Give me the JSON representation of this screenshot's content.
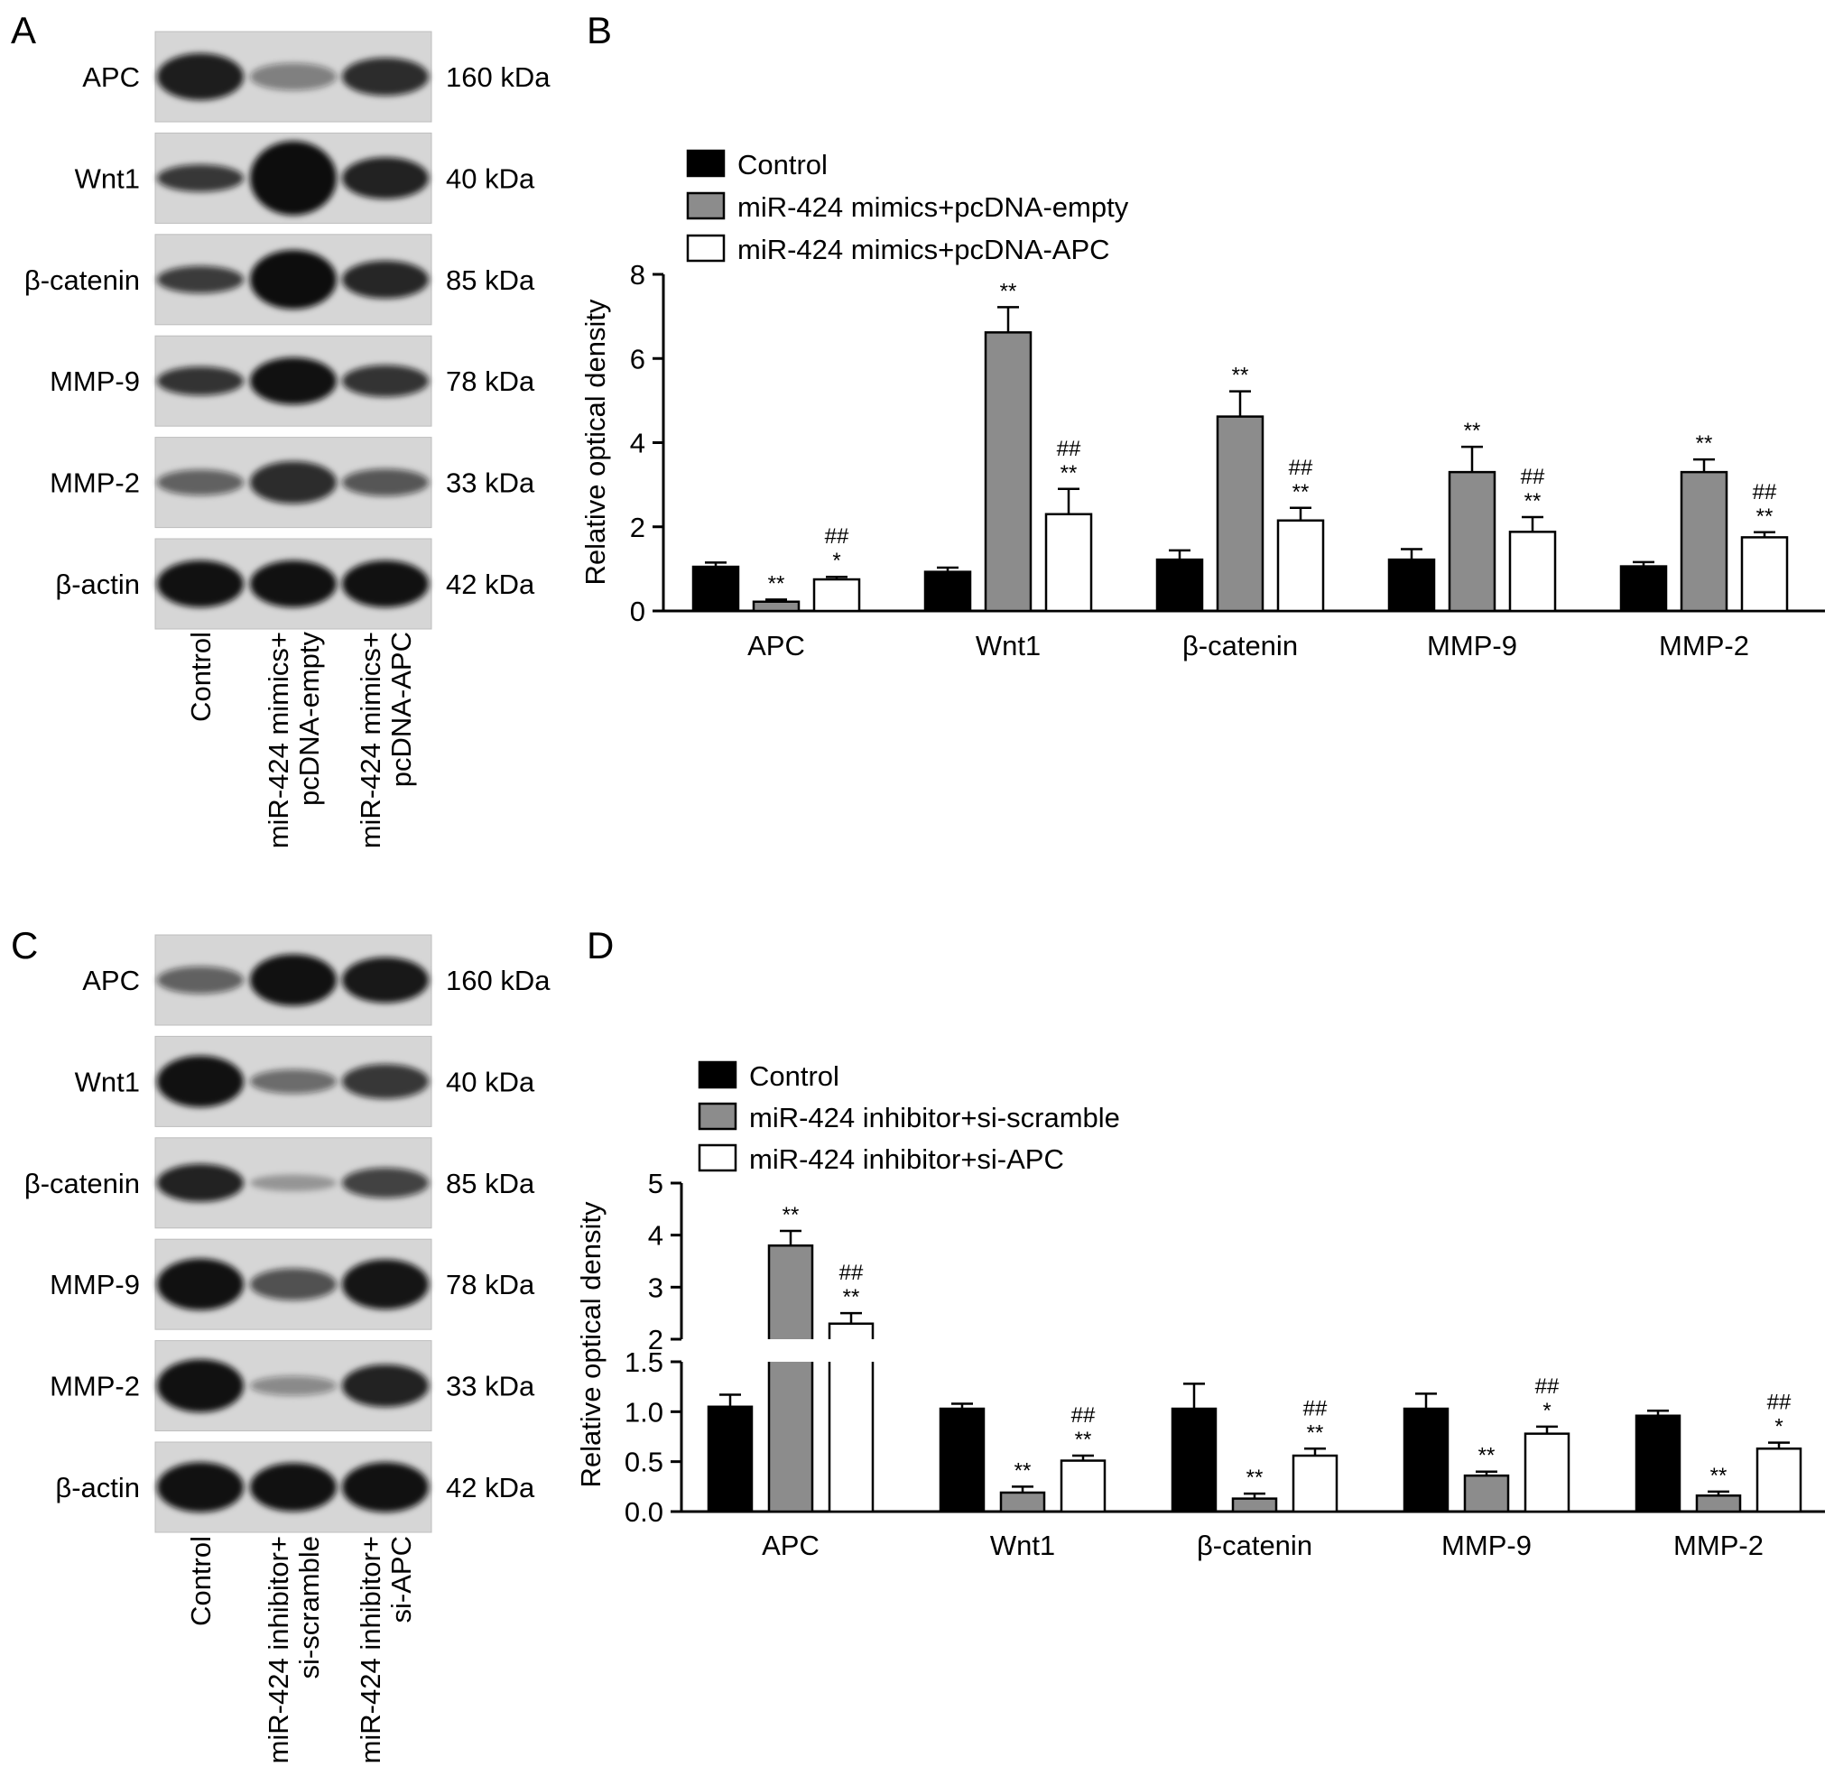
{
  "panels": {
    "A": {
      "letter": "A",
      "proteins": [
        {
          "name": "APC",
          "size": "160 kDa",
          "bands": [
            0.92,
            0.45,
            0.85
          ],
          "thickness": [
            0.62,
            0.36,
            0.5
          ]
        },
        {
          "name": "Wnt1",
          "size": "40 kDa",
          "bands": [
            0.8,
            1.0,
            0.9
          ],
          "thickness": [
            0.36,
            0.98,
            0.55
          ]
        },
        {
          "name": "β-catenin",
          "size": "85 kDa",
          "bands": [
            0.78,
            1.0,
            0.88
          ],
          "thickness": [
            0.36,
            0.78,
            0.5
          ]
        },
        {
          "name": "MMP-9",
          "size": "78 kDa",
          "bands": [
            0.82,
            0.98,
            0.82
          ],
          "thickness": [
            0.38,
            0.62,
            0.42
          ]
        },
        {
          "name": "MMP-2",
          "size": "33 kDa",
          "bands": [
            0.6,
            0.85,
            0.65
          ],
          "thickness": [
            0.34,
            0.56,
            0.36
          ]
        },
        {
          "name": "β-actin",
          "size": "42 kDa",
          "bands": [
            0.98,
            0.98,
            0.98
          ],
          "thickness": [
            0.62,
            0.62,
            0.62
          ]
        }
      ],
      "lanes": [
        [
          "Control"
        ],
        [
          "miR-424 mimics+",
          "pcDNA-empty"
        ],
        [
          "miR-424 mimics+",
          "pcDNA-APC"
        ]
      ]
    },
    "C": {
      "letter": "C",
      "proteins": [
        {
          "name": "APC",
          "size": "160 kDa",
          "bands": [
            0.6,
            0.98,
            0.95
          ],
          "thickness": [
            0.36,
            0.68,
            0.6
          ]
        },
        {
          "name": "Wnt1",
          "size": "40 kDa",
          "bands": [
            0.98,
            0.55,
            0.8
          ],
          "thickness": [
            0.68,
            0.32,
            0.46
          ]
        },
        {
          "name": "β-catenin",
          "size": "85 kDa",
          "bands": [
            0.9,
            0.3,
            0.75
          ],
          "thickness": [
            0.5,
            0.22,
            0.4
          ]
        },
        {
          "name": "MMP-9",
          "size": "78 kDa",
          "bands": [
            0.98,
            0.68,
            0.96
          ],
          "thickness": [
            0.68,
            0.42,
            0.66
          ]
        },
        {
          "name": "MMP-2",
          "size": "33 kDa",
          "bands": [
            0.98,
            0.4,
            0.9
          ],
          "thickness": [
            0.7,
            0.26,
            0.56
          ]
        },
        {
          "name": "β-actin",
          "size": "42 kDa",
          "bands": [
            0.98,
            0.98,
            0.98
          ],
          "thickness": [
            0.66,
            0.64,
            0.66
          ]
        }
      ],
      "lanes": [
        [
          "Control"
        ],
        [
          "miR-424 inhibitor+",
          "si-scramble"
        ],
        [
          "miR-424 inhibitor+",
          "si-APC"
        ]
      ]
    }
  },
  "chart_data": [
    {
      "panel": "B",
      "type": "bar",
      "ylabel": "Relative optical density",
      "ylim": [
        0,
        8
      ],
      "yticks": [
        0,
        2,
        4,
        6,
        8
      ],
      "categories": [
        "APC",
        "Wnt1",
        "β-catenin",
        "MMP-9",
        "MMP-2"
      ],
      "legend_position": "top-left",
      "colors": [
        "#000000",
        "#8c8c8c",
        "#ffffff"
      ],
      "series": [
        {
          "name": "Control",
          "values": [
            1.05,
            0.93,
            1.22,
            1.22,
            1.06
          ],
          "errors": [
            0.1,
            0.1,
            0.22,
            0.25,
            0.1
          ],
          "marks": [
            [],
            [],
            [],
            [],
            []
          ]
        },
        {
          "name": "miR-424 mimics+pcDNA-empty",
          "values": [
            0.22,
            6.62,
            4.62,
            3.3,
            3.3
          ],
          "errors": [
            0.05,
            0.6,
            0.6,
            0.6,
            0.3
          ],
          "marks": [
            [
              "**"
            ],
            [
              "**"
            ],
            [
              "**"
            ],
            [
              "**"
            ],
            [
              "**"
            ]
          ]
        },
        {
          "name": "miR-424 mimics+pcDNA-APC",
          "values": [
            0.75,
            2.3,
            2.15,
            1.88,
            1.75
          ],
          "errors": [
            0.06,
            0.6,
            0.3,
            0.35,
            0.12
          ],
          "marks": [
            [
              "##",
              "*"
            ],
            [
              "##",
              "**"
            ],
            [
              "##",
              "**"
            ],
            [
              "##",
              "**"
            ],
            [
              "##",
              "**"
            ]
          ]
        }
      ]
    },
    {
      "panel": "D",
      "type": "bar",
      "ylabel": "Relative optical density",
      "broken_axis": true,
      "ylim_lower": [
        0,
        1.5
      ],
      "yticks_lower": [
        "0.0",
        "0.5",
        "1.0",
        "1.5"
      ],
      "ylim_upper": [
        2,
        5
      ],
      "yticks_upper": [
        "2",
        "3",
        "4",
        "5"
      ],
      "categories": [
        "APC",
        "Wnt1",
        "β-catenin",
        "MMP-9",
        "MMP-2"
      ],
      "legend_position": "top-left",
      "colors": [
        "#000000",
        "#8c8c8c",
        "#ffffff"
      ],
      "series": [
        {
          "name": "Control",
          "values": [
            1.05,
            1.03,
            1.03,
            1.03,
            0.96
          ],
          "errors": [
            0.12,
            0.05,
            0.25,
            0.15,
            0.05
          ],
          "marks": [
            [],
            [],
            [],
            [],
            []
          ]
        },
        {
          "name": "miR-424 inhibitor+si-scramble",
          "values": [
            3.8,
            0.19,
            0.13,
            0.36,
            0.16
          ],
          "errors": [
            0.28,
            0.06,
            0.05,
            0.04,
            0.04
          ],
          "marks": [
            [
              "**"
            ],
            [
              "**"
            ],
            [
              "**"
            ],
            [
              "**"
            ],
            [
              "**"
            ]
          ]
        },
        {
          "name": "miR-424 inhibitor+si-APC",
          "values": [
            2.3,
            0.51,
            0.56,
            0.78,
            0.63
          ],
          "errors": [
            0.2,
            0.05,
            0.07,
            0.07,
            0.06
          ],
          "marks": [
            [
              "##",
              "**"
            ],
            [
              "##",
              "**"
            ],
            [
              "##",
              "**"
            ],
            [
              "##",
              "*"
            ],
            [
              "##",
              "*"
            ]
          ]
        }
      ]
    }
  ]
}
